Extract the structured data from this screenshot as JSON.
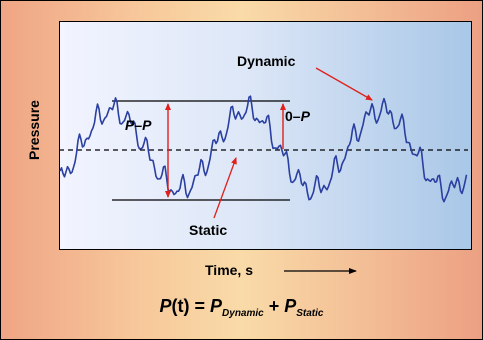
{
  "diagram": {
    "y_axis_label": "Pressure",
    "x_axis_label": "Time, s",
    "labels": {
      "dynamic": "Dynamic",
      "static": "Static",
      "peak_to_peak": "P–P",
      "zero_to_peak_prefix": "0–",
      "zero_to_peak_p": "P"
    },
    "formula": {
      "lhs": "P",
      "lhs_arg": "(t)",
      "eq": " = ",
      "p1": "P",
      "sub1": "Dynamic",
      "plus": " + ",
      "p2": "P",
      "sub2": "Static"
    },
    "colors": {
      "signal": "#2a3fa0",
      "arrow": "#e0201c",
      "line": "#000000"
    }
  }
}
